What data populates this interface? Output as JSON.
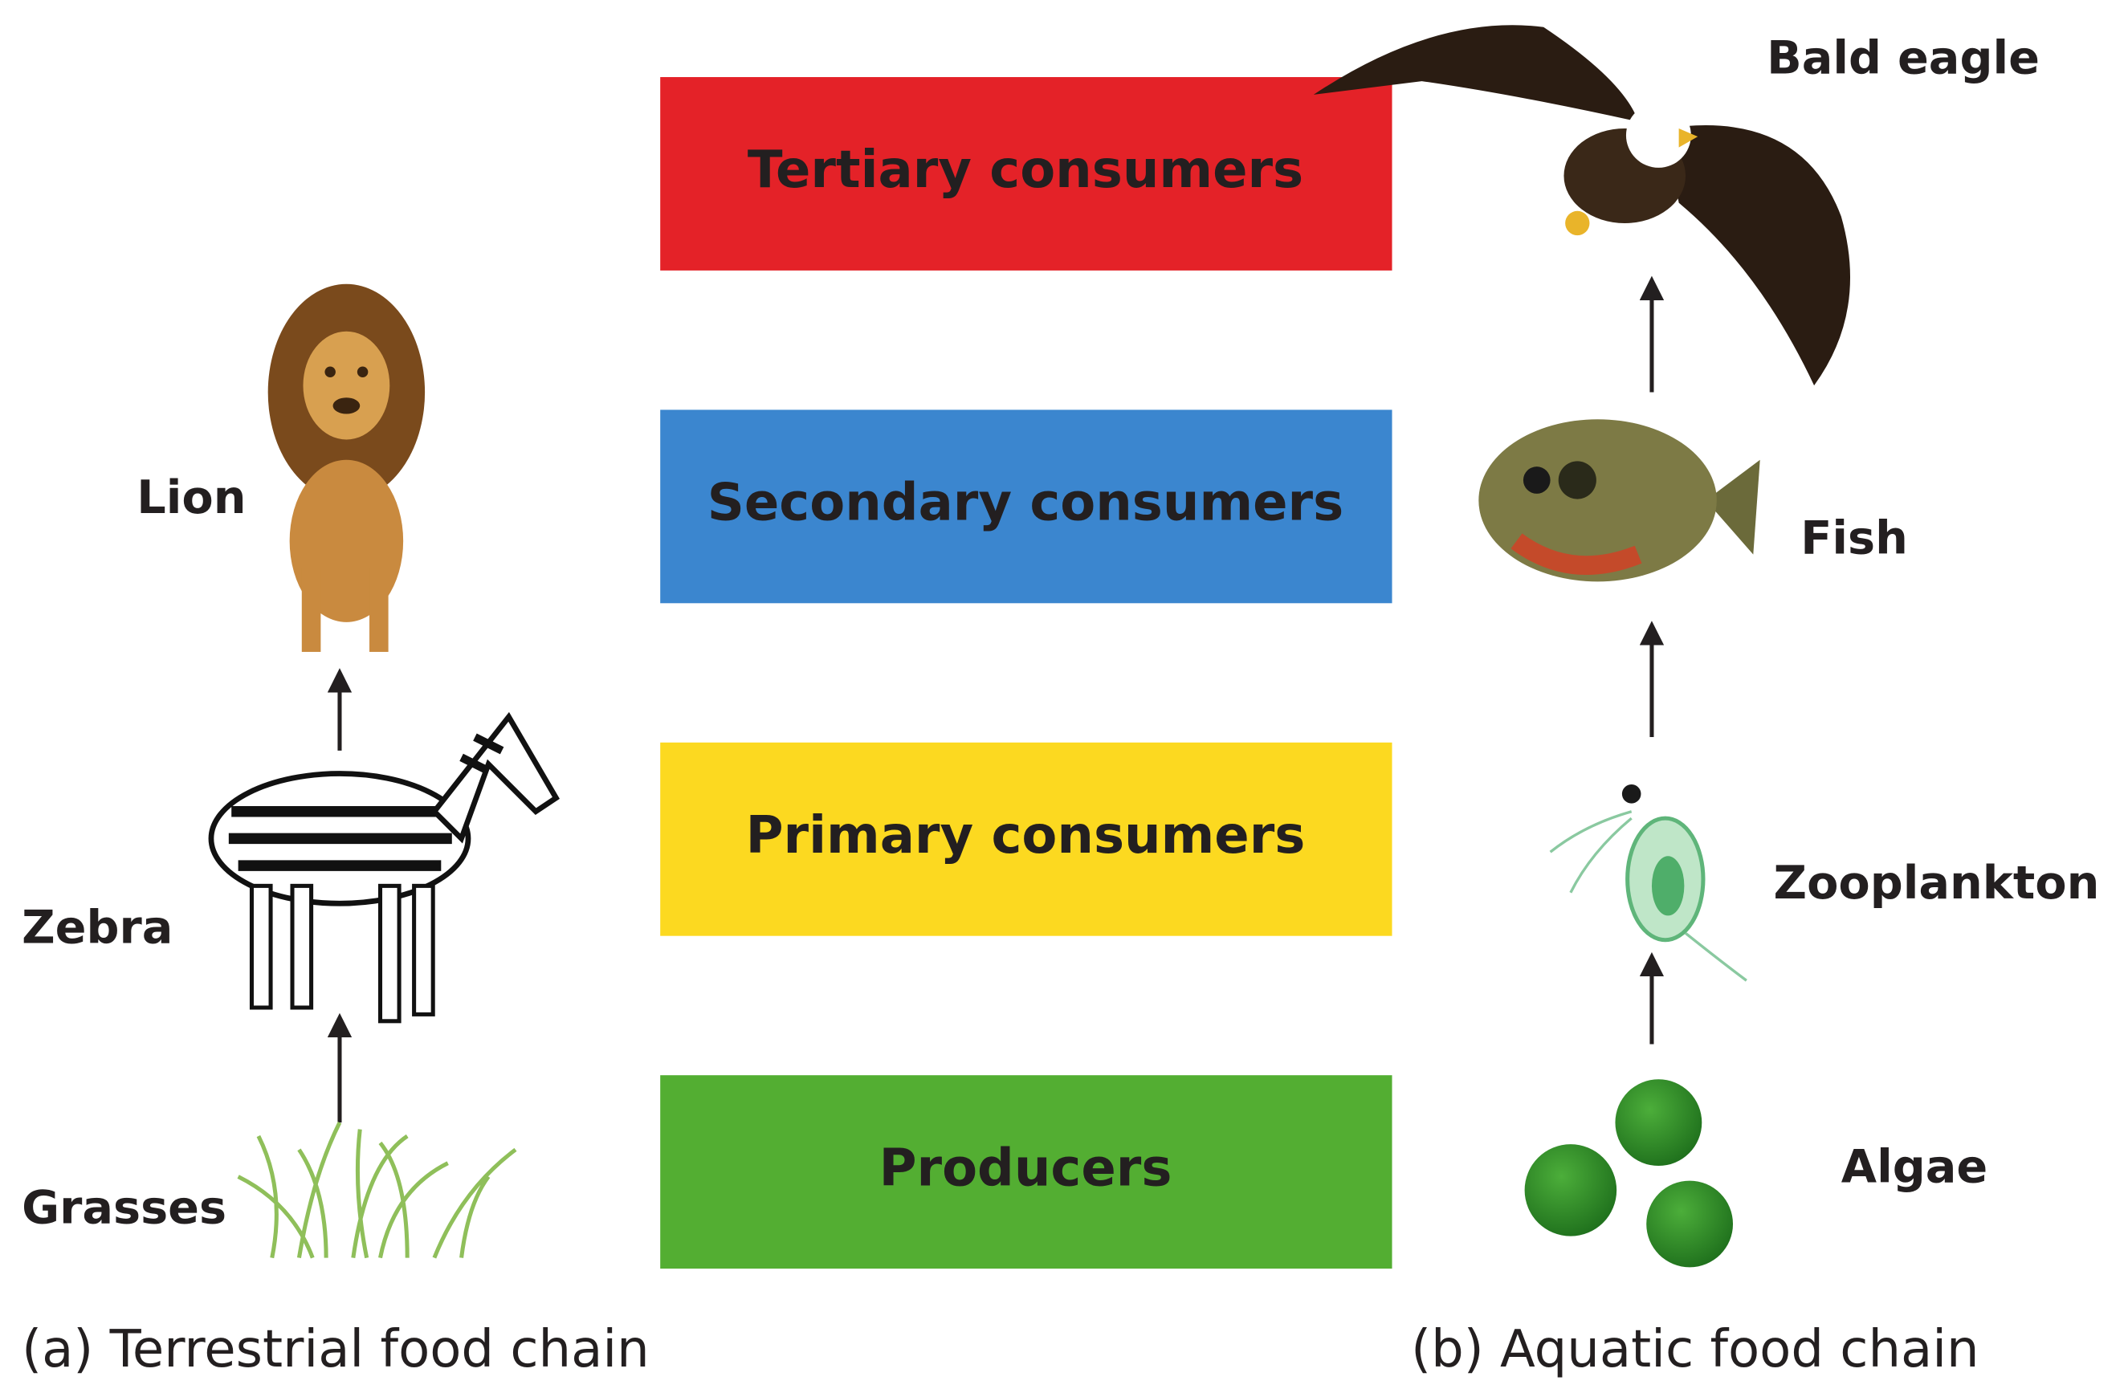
{
  "levels": [
    {
      "label": "Tertiary consumers",
      "color": "#e42228"
    },
    {
      "label": "Secondary consumers",
      "color": "#3b86cf"
    },
    {
      "label": "Primary consumers",
      "color": "#fcd920"
    },
    {
      "label": "Producers",
      "color": "#53ae32"
    }
  ],
  "terrestrial": {
    "caption": "(a) Terrestrial food chain",
    "organisms": [
      "Lion",
      "Zebra",
      "Grasses"
    ]
  },
  "aquatic": {
    "caption": "(b) Aquatic food chain",
    "organisms": [
      "Bald eagle",
      "Fish",
      "Zooplankton",
      "Algae"
    ]
  }
}
